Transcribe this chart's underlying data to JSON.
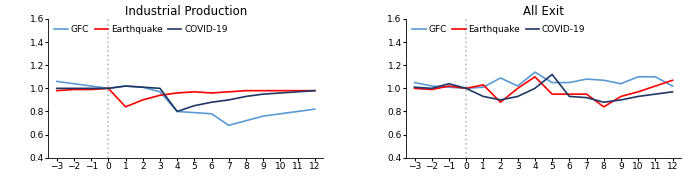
{
  "x": [
    -3,
    -2,
    -1,
    0,
    1,
    2,
    3,
    4,
    5,
    6,
    7,
    8,
    9,
    10,
    11,
    12
  ],
  "left_title": "Industrial Production",
  "right_title": "All Exit",
  "left": {
    "GFC": [
      1.06,
      1.04,
      1.02,
      1.0,
      1.02,
      1.01,
      0.97,
      0.8,
      0.79,
      0.78,
      0.68,
      0.72,
      0.76,
      0.78,
      0.8,
      0.82
    ],
    "Earthquake": [
      0.98,
      0.99,
      0.99,
      1.0,
      0.84,
      0.9,
      0.94,
      0.96,
      0.97,
      0.96,
      0.97,
      0.98,
      0.98,
      0.98,
      0.98,
      0.98
    ],
    "COVID-19": [
      1.0,
      1.0,
      1.0,
      1.0,
      1.02,
      1.01,
      1.0,
      0.8,
      0.85,
      0.88,
      0.9,
      0.93,
      0.95,
      0.96,
      0.97,
      0.98
    ]
  },
  "right": {
    "GFC": [
      1.05,
      1.02,
      1.01,
      1.0,
      1.01,
      1.09,
      1.02,
      1.14,
      1.05,
      1.05,
      1.08,
      1.07,
      1.04,
      1.1,
      1.1,
      1.02
    ],
    "Earthquake": [
      1.0,
      0.99,
      1.02,
      1.0,
      1.03,
      0.88,
      1.0,
      1.1,
      0.95,
      0.95,
      0.95,
      0.84,
      0.93,
      0.97,
      1.02,
      1.07
    ],
    "COVID-19": [
      1.01,
      1.0,
      1.04,
      1.0,
      0.93,
      0.9,
      0.93,
      1.0,
      1.12,
      0.93,
      0.92,
      0.88,
      0.9,
      0.93,
      0.95,
      0.97
    ]
  },
  "colors": {
    "GFC": "#5B9BD5",
    "Earthquake": "#FF0000",
    "COVID-19": "#1F3864"
  },
  "ylim": [
    0.4,
    1.6
  ],
  "yticks": [
    0.4,
    0.6,
    0.8,
    1.0,
    1.2,
    1.4,
    1.6
  ],
  "vline_color": "#BBBBBB",
  "legend_fontsize": 6.5,
  "title_fontsize": 8.5,
  "tick_fontsize": 6.5,
  "line_width": 1.2
}
